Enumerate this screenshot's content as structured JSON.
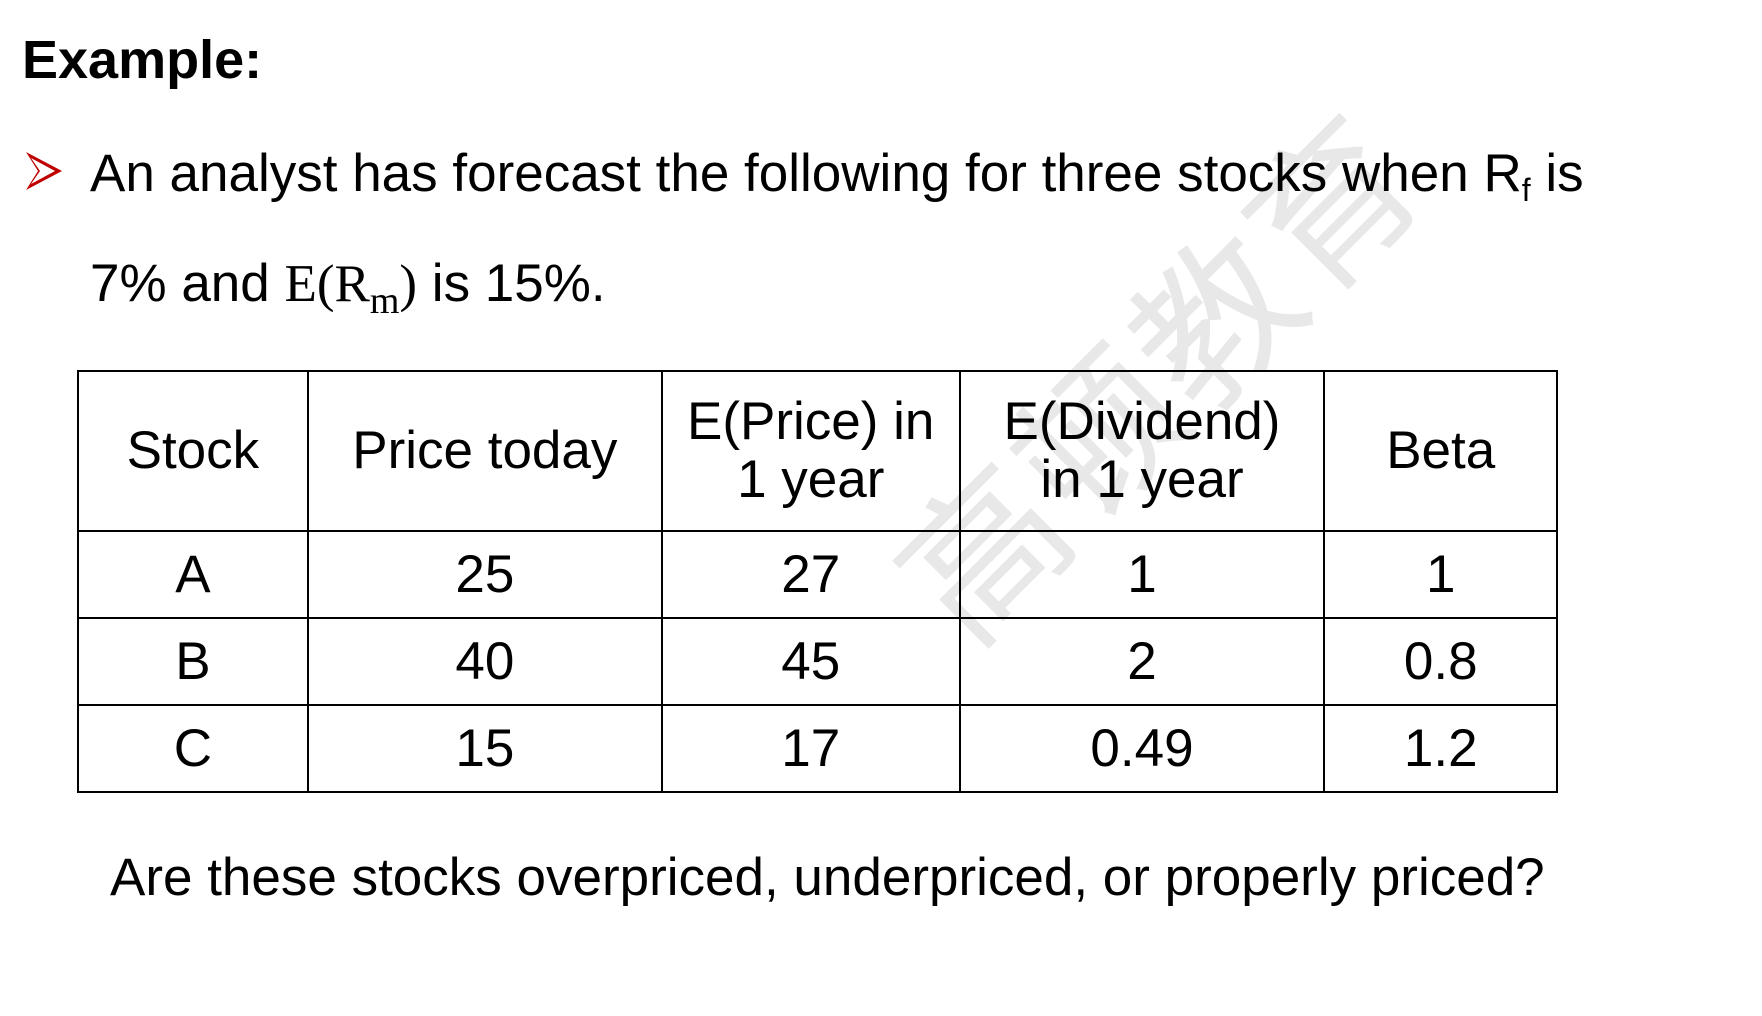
{
  "title": "Example:",
  "bullet": {
    "icon": "arrowhead-bullet-icon",
    "color": "#c00000",
    "line1_prefix": "An analyst has forecast the following for three stocks when R",
    "line1_rf_sub": "f",
    "line1_suffix": " is",
    "line2_prefix": "7% and ",
    "line2_erm_open": "E(R",
    "line2_erm_sub": "m",
    "line2_erm_close": ")",
    "line2_suffix": " is 15%."
  },
  "table": {
    "headers": {
      "stock": "Stock",
      "price_today": "Price today",
      "eprice_line1": "E(Price) in",
      "eprice_line2": "1 year",
      "ediv_line1": "E(Dividend)",
      "ediv_line2": "in 1 year",
      "beta": "Beta"
    },
    "rows": [
      {
        "stock": "A",
        "price_today": "25",
        "eprice": "27",
        "ediv": "1",
        "beta": "1"
      },
      {
        "stock": "B",
        "price_today": "40",
        "eprice": "45",
        "ediv": "2",
        "beta": "0.8"
      },
      {
        "stock": "C",
        "price_today": "15",
        "eprice": "17",
        "ediv": "0.49",
        "beta": "1.2"
      }
    ]
  },
  "question": "Are these stocks overpriced, underpriced, or properly priced?",
  "watermark": "高顿教育"
}
